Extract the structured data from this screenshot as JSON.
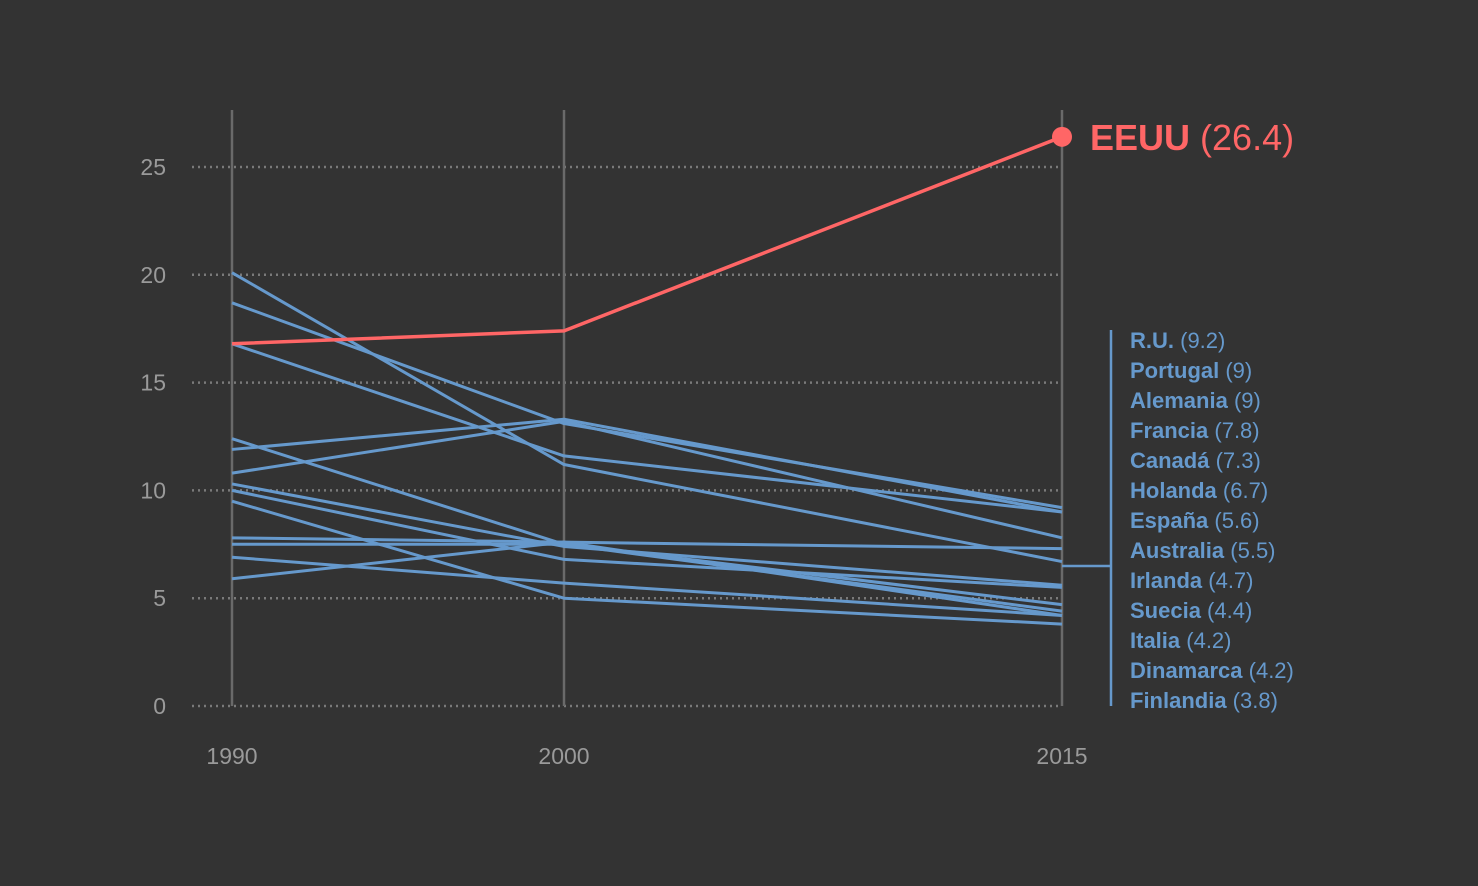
{
  "chart_data": {
    "type": "line",
    "x": [
      1990,
      2000,
      2015
    ],
    "xticks": [
      "1990",
      "2000",
      "2015"
    ],
    "yticks": [
      "0",
      "5",
      "10",
      "15",
      "20",
      "25"
    ],
    "ylim": [
      0,
      27.5
    ],
    "grid": "horizontal-dotted",
    "highlight": {
      "name": "EEUU",
      "value_label": "(26.4)",
      "values": [
        16.8,
        17.4,
        26.4
      ],
      "color": "#ff6666"
    },
    "series": [
      {
        "name": "R.U.",
        "value_label": "(9.2)",
        "values": [
          18.7,
          13.1,
          9.2
        ]
      },
      {
        "name": "Portugal",
        "value_label": "(9)",
        "values": [
          16.8,
          11.6,
          9.0
        ]
      },
      {
        "name": "Alemania",
        "value_label": "(9)",
        "values": [
          11.9,
          13.3,
          9.0
        ]
      },
      {
        "name": "Francia",
        "value_label": "(7.8)",
        "values": [
          10.8,
          13.2,
          7.8
        ]
      },
      {
        "name": "Canadá",
        "value_label": "(7.3)",
        "values": [
          7.8,
          7.6,
          7.3
        ]
      },
      {
        "name": "Holanda",
        "value_label": "(6.7)",
        "values": [
          20.1,
          11.2,
          6.7
        ]
      },
      {
        "name": "España",
        "value_label": "(5.6)",
        "values": [
          10.3,
          7.4,
          5.6
        ]
      },
      {
        "name": "Australia",
        "value_label": "(5.5)",
        "values": [
          10.0,
          6.8,
          5.5
        ]
      },
      {
        "name": "Irlanda",
        "value_label": "(4.7)",
        "values": [
          12.4,
          7.5,
          4.7
        ]
      },
      {
        "name": "Suecia",
        "value_label": "(4.4)",
        "values": [
          7.5,
          7.5,
          4.4
        ]
      },
      {
        "name": "Italia",
        "value_label": "(4.2)",
        "values": [
          6.9,
          5.7,
          4.2
        ]
      },
      {
        "name": "Dinamarca",
        "value_label": "(4.2)",
        "values": [
          5.9,
          7.6,
          4.2
        ]
      },
      {
        "name": "Finlandia",
        "value_label": "(3.8)",
        "values": [
          9.5,
          5.0,
          3.8
        ]
      }
    ],
    "series_color": "#6699cc",
    "legend_placement": "right"
  }
}
